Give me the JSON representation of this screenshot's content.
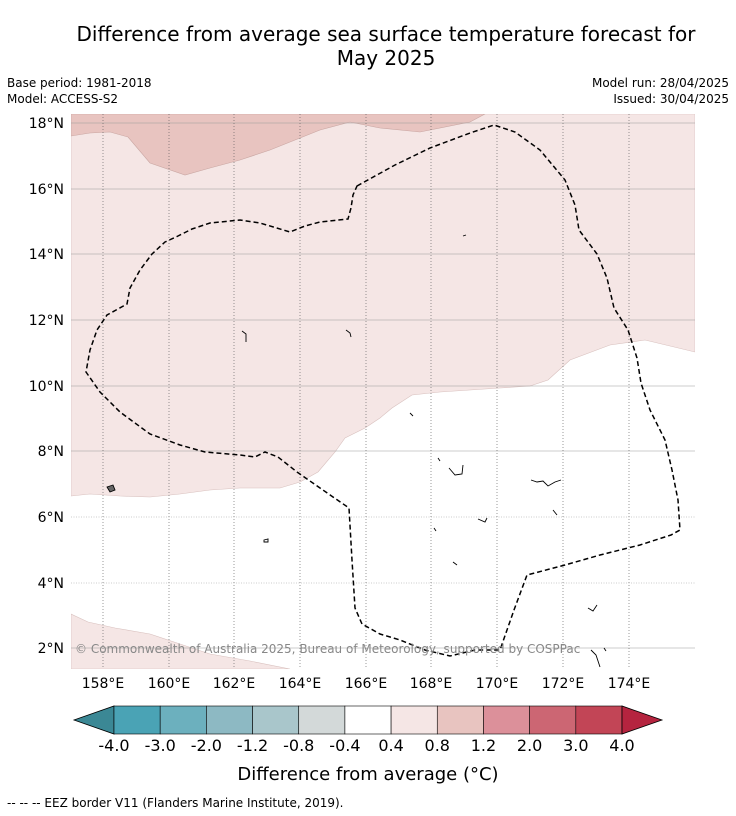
{
  "title_line1": "Difference from average sea surface temperature forecast for",
  "title_line2": "May 2025",
  "base_period": "Base period: 1981-2018",
  "model": "Model: ACCESS-S2",
  "model_run": "Model run: 28/04/2025",
  "issued": "Issued: 30/04/2025",
  "copyright": "© Commonwealth of Australia 2025, Bureau of Meteorology, supported by COSPPac",
  "lat_labels": [
    "18°N",
    "16°N",
    "14°N",
    "12°N",
    "10°N",
    "8°N",
    "6°N",
    "4°N",
    "2°N"
  ],
  "lon_labels": [
    "158°E",
    "160°E",
    "162°E",
    "164°E",
    "166°E",
    "168°E",
    "170°E",
    "172°E",
    "174°E"
  ],
  "colorbar": {
    "tick_labels": [
      "-4.0",
      "-3.0",
      "-2.0",
      "-1.2",
      "-0.8",
      "-0.4",
      "0.4",
      "0.8",
      "1.2",
      "2.0",
      "3.0",
      "4.0"
    ],
    "colors": [
      "#3b8895",
      "#4aa3b5",
      "#6cb0be",
      "#8db9c3",
      "#a9c6cb",
      "#d3d9d9",
      "#ffffff",
      "#f5e6e5",
      "#e8c4c0",
      "#dc909a",
      "#cc6673",
      "#c24556",
      "#b5243f"
    ],
    "label": "Difference from average (°C)"
  },
  "eez_legend": "--  --  -- EEZ border V11 (Flanders Marine Institute, 2019)."
}
